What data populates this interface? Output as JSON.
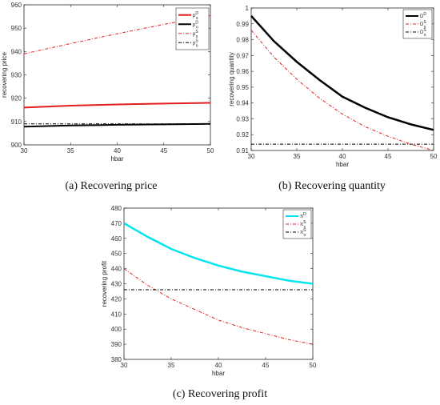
{
  "captions": {
    "a": "(a) Recovering price",
    "b": "(b) Recovering quantity",
    "c": "(c) Recovering profit"
  },
  "chart_data": [
    {
      "type": "line",
      "xlabel": "hbar",
      "ylabel": "recovering price",
      "xlim": [
        30,
        50
      ],
      "ylim": [
        900,
        960
      ],
      "xticks": [
        30,
        35,
        40,
        45,
        50
      ],
      "yticks": [
        900,
        910,
        920,
        930,
        940,
        950,
        960
      ],
      "grid": false,
      "legend_position": "top-right",
      "x": [
        30,
        35,
        40,
        45,
        50
      ],
      "series": [
        {
          "name": "p",
          "sub": "s",
          "sup": "D",
          "color": "#e02020",
          "dash": "solid",
          "width": 2,
          "values": [
            916,
            916.8,
            917.3,
            917.7,
            918
          ]
        },
        {
          "name": "p",
          "sub": "o",
          "sup": "D",
          "color": "#000000",
          "dash": "solid",
          "width": 2,
          "values": [
            907.8,
            908.3,
            908.6,
            908.8,
            909
          ]
        },
        {
          "name": "p",
          "sub": "s",
          "sup": "S",
          "color": "#e02020",
          "dash": "dashdot",
          "width": 1,
          "values": [
            939,
            943.4,
            947.6,
            951.6,
            955.4
          ]
        },
        {
          "name": "p",
          "sub": "o",
          "sup": "S",
          "color": "#000000",
          "dash": "dashdot",
          "width": 1,
          "values": [
            909,
            909,
            909,
            909,
            909
          ]
        }
      ]
    },
    {
      "type": "line",
      "xlabel": "hbar",
      "ylabel": "recovering quantity",
      "xlim": [
        30,
        50
      ],
      "ylim": [
        0.91,
        1
      ],
      "xticks": [
        30,
        35,
        40,
        45,
        50
      ],
      "yticks": [
        0.91,
        0.92,
        0.93,
        0.94,
        0.95,
        0.96,
        0.97,
        0.98,
        0.99,
        1
      ],
      "grid": false,
      "legend_position": "top-right",
      "x": [
        30,
        32.5,
        35,
        37.5,
        40,
        42.5,
        45,
        47.5,
        50
      ],
      "series": [
        {
          "name": "D",
          "sup": "D",
          "color": "#000000",
          "dash": "solid",
          "width": 2.5,
          "values": [
            0.995,
            0.979,
            0.966,
            0.9545,
            0.944,
            0.937,
            0.931,
            0.9265,
            0.923
          ]
        },
        {
          "name": "D",
          "sub": "s",
          "sup": "S",
          "color": "#e02020",
          "dash": "dashdot",
          "width": 1,
          "values": [
            0.986,
            0.969,
            0.955,
            0.943,
            0.933,
            0.925,
            0.919,
            0.914,
            0.91
          ]
        },
        {
          "name": "D",
          "sub": "o",
          "sup": "S",
          "color": "#000000",
          "dash": "dashdot",
          "width": 1,
          "values": [
            0.914,
            0.914,
            0.914,
            0.914,
            0.914,
            0.914,
            0.914,
            0.914,
            0.914
          ]
        }
      ]
    },
    {
      "type": "line",
      "xlabel": "hbar",
      "ylabel": "recovering profit",
      "xlim": [
        30,
        50
      ],
      "ylim": [
        380,
        480
      ],
      "xticks": [
        30,
        35,
        40,
        45,
        50
      ],
      "yticks": [
        380,
        390,
        400,
        410,
        420,
        430,
        440,
        450,
        460,
        470,
        480
      ],
      "grid": false,
      "legend_position": "top-right",
      "x": [
        30,
        32.5,
        35,
        37.5,
        40,
        42.5,
        45,
        47.5,
        50
      ],
      "series": [
        {
          "name": "π",
          "sup": "D",
          "color": "#00e5ee",
          "dash": "solid",
          "width": 2.5,
          "values": [
            470,
            461,
            453,
            447,
            442,
            438,
            435,
            432,
            430
          ]
        },
        {
          "name": "π",
          "sub": "s",
          "sup": "S",
          "color": "#e02020",
          "dash": "dashdot",
          "width": 1,
          "values": [
            440,
            429,
            420,
            413,
            406,
            401,
            397,
            393,
            390
          ]
        },
        {
          "name": "π",
          "sub": "o",
          "sup": "S",
          "color": "#000000",
          "dash": "dashdot",
          "width": 1,
          "values": [
            426,
            426,
            426,
            426,
            426,
            426,
            426,
            426,
            426
          ]
        }
      ]
    }
  ]
}
